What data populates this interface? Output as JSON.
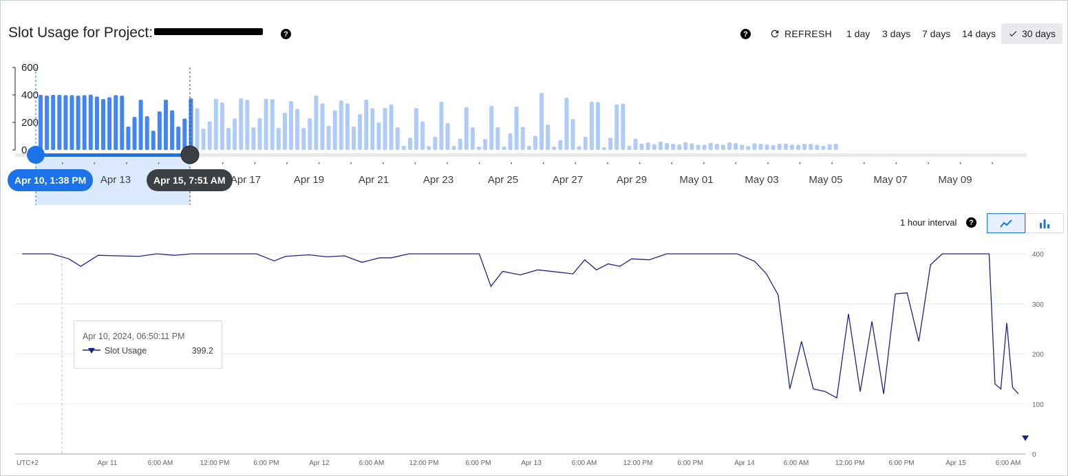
{
  "header": {
    "title": "Slot Usage for Project:",
    "refresh_label": "REFRESH",
    "ranges": [
      "1 day",
      "3 days",
      "7 days",
      "14 days",
      "30 days"
    ],
    "selected_range": "30 days",
    "help_glyph": "?"
  },
  "overview": {
    "y_ticks": [
      "600",
      "400",
      "200",
      "0"
    ],
    "x_ticks": [
      "Apr 13",
      "Apr 17",
      "Apr 19",
      "Apr 21",
      "Apr 23",
      "Apr 25",
      "Apr 27",
      "Apr 29",
      "May 01",
      "May 03",
      "May 05",
      "May 07",
      "May 09"
    ],
    "selection_start_label": "Apr 10, 1:38 PM",
    "selection_end_label": "Apr 15, 7:51 AM",
    "bars": [
      400,
      395,
      400,
      400,
      398,
      398,
      395,
      398,
      402,
      388,
      370,
      383,
      398,
      395,
      170,
      240,
      365,
      245,
      140,
      280,
      365,
      288,
      170,
      228,
      375,
      303,
      155,
      208,
      372,
      345,
      160,
      228,
      375,
      365,
      165,
      230,
      372,
      370,
      160,
      270,
      355,
      298,
      160,
      230,
      395,
      338,
      175,
      288,
      360,
      338,
      170,
      260,
      365,
      303,
      200,
      305,
      330,
      165,
      30,
      88,
      305,
      208,
      28,
      95,
      350,
      195,
      30,
      82,
      310,
      165,
      25,
      80,
      320,
      165,
      25,
      120,
      315,
      168,
      30,
      102,
      415,
      185,
      25,
      72,
      380,
      225,
      28,
      96,
      352,
      348,
      20,
      88,
      330,
      335,
      30,
      82,
      45,
      55,
      42,
      62,
      50,
      45,
      40,
      56,
      48,
      38,
      38,
      52,
      45,
      38,
      55,
      50,
      38,
      28,
      48,
      45,
      40,
      35,
      45,
      45,
      38,
      38,
      45,
      45,
      38,
      30,
      42,
      45
    ]
  },
  "detail": {
    "interval_label": "1 hour interval",
    "y_ticks": [
      "400",
      "300",
      "200",
      "100",
      "0"
    ],
    "x_ticks": [
      "UTC+2",
      "Apr 11",
      "6:00 AM",
      "12:00 PM",
      "6:00 PM",
      "Apr 12",
      "6:00 AM",
      "12:00 PM",
      "6:00 PM",
      "Apr 13",
      "6:00 AM",
      "12:00 PM",
      "6:00 PM",
      "Apr 14",
      "6:00 AM",
      "12:00 PM",
      "6:00 PM",
      "Apr 15",
      "6:00 AM"
    ],
    "tooltip": {
      "date": "Apr 10, 2024, 06:50:11 PM",
      "series": "Slot Usage",
      "value": "399.2"
    }
  },
  "chart_data": [
    {
      "type": "bar",
      "title": "",
      "ylim": [
        0,
        600
      ],
      "x_range": [
        "Apr 10",
        "May 10"
      ],
      "selection": [
        "Apr 10, 1:38 PM",
        "Apr 15, 7:51 AM"
      ],
      "series": [
        {
          "values": [
            400,
            395,
            400,
            400,
            398,
            398,
            395,
            398,
            402,
            388,
            370,
            383,
            398,
            395,
            170,
            240,
            365,
            245,
            140,
            280,
            365,
            288,
            170,
            228,
            375,
            303,
            155,
            208,
            372,
            345,
            160,
            228,
            375,
            365,
            165,
            230,
            372,
            370,
            160,
            270,
            355,
            298,
            160,
            230,
            395,
            338,
            175,
            288,
            360,
            338,
            170,
            260,
            365,
            303,
            200,
            305,
            330,
            165,
            30,
            88,
            305,
            208,
            28,
            95,
            350,
            195,
            30,
            82,
            310,
            165,
            25,
            80,
            320,
            165,
            25,
            120,
            315,
            168,
            30,
            102,
            415,
            185,
            25,
            72,
            380,
            225,
            28,
            96,
            352,
            348,
            20,
            88,
            330,
            335,
            30,
            82,
            45,
            55,
            42,
            62,
            50,
            45,
            40,
            56,
            48,
            38,
            38,
            52,
            45,
            38,
            55,
            50,
            38,
            28,
            48,
            45,
            40,
            35,
            45,
            45,
            38,
            38,
            45,
            45,
            38,
            30,
            42,
            45
          ]
        }
      ]
    },
    {
      "type": "line",
      "title": "",
      "ylim": [
        0,
        400
      ],
      "x_unit": "hours since Apr 10, 12:00 PM (UTC+2)",
      "series": [
        {
          "name": "Slot Usage",
          "color": "#1a237e",
          "x": [
            0,
            5,
            8,
            10,
            13,
            16,
            20,
            23,
            26,
            29,
            33,
            37,
            40,
            43,
            45,
            49,
            52,
            55,
            58,
            61,
            63,
            66,
            69,
            72,
            74,
            76,
            78,
            80,
            82,
            85,
            88,
            91,
            94,
            96,
            98,
            100,
            102,
            104,
            107,
            110,
            113,
            116,
            119,
            122,
            125,
            127,
            129,
            131,
            133,
            135,
            137,
            139,
            141,
            143,
            145,
            147,
            149,
            151,
            153,
            155,
            157,
            159,
            161,
            163,
            165,
            166,
            167,
            168,
            169,
            170
          ],
          "y": [
            400,
            400,
            390,
            375,
            397,
            396,
            395,
            400,
            397,
            400,
            400,
            400,
            400,
            386,
            395,
            398,
            394,
            396,
            383,
            392,
            392,
            400,
            400,
            400,
            400,
            400,
            400,
            335,
            365,
            358,
            368,
            364,
            360,
            388,
            368,
            380,
            375,
            390,
            388,
            400,
            400,
            400,
            400,
            400,
            385,
            360,
            318,
            130,
            225,
            130,
            125,
            112,
            280,
            125,
            265,
            120,
            320,
            322,
            225,
            378,
            400,
            400,
            400,
            400,
            400,
            140,
            130,
            262,
            133,
            120
          ]
        }
      ]
    }
  ]
}
